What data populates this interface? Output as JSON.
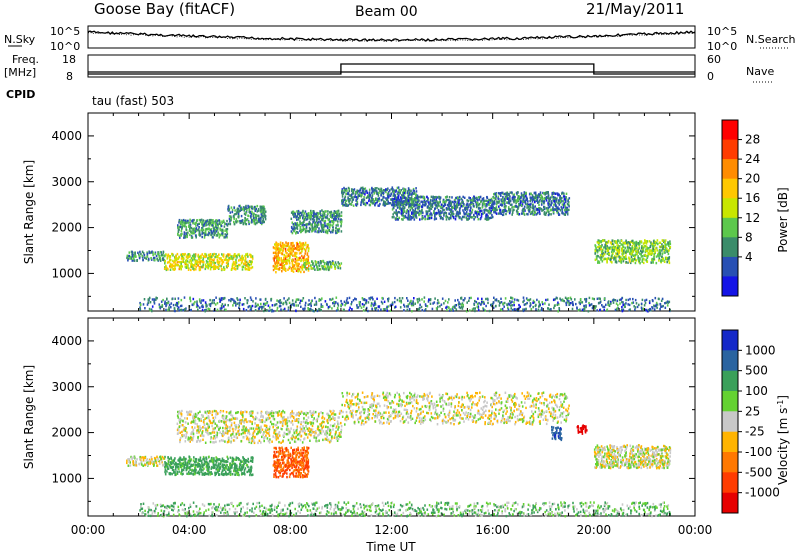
{
  "header": {
    "station": "Goose Bay (fitACF)",
    "beam": "Beam 00",
    "date": "21/May/2011"
  },
  "top_panel": {
    "left_label": "N.Sky",
    "left_ticks": [
      "10^5",
      "10^0"
    ],
    "right_label": "N.Search",
    "right_ticks": [
      "10^5",
      "10^0"
    ]
  },
  "freq_panel": {
    "left_label_1": "Freq.",
    "left_label_2": "[MHz]",
    "left_ticks": [
      "18",
      "8"
    ],
    "right_label": "Nave",
    "right_ticks": [
      "60",
      "0"
    ],
    "cpid_label": "CPID",
    "cpid_value": "tau (fast) 503"
  },
  "power_colorbar": {
    "label": "Power [dB]",
    "ticks": [
      "28",
      "24",
      "20",
      "16",
      "12",
      "8",
      "4"
    ],
    "colors": [
      "#ff0000",
      "#ff3c00",
      "#ff8c00",
      "#ffc800",
      "#c8e600",
      "#5cc84c",
      "#3a8c6a",
      "#2850b4",
      "#1414e6"
    ]
  },
  "velocity_colorbar": {
    "label": "Velocity [m s",
    "label_sup": "-1",
    "label_end": "]",
    "ticks": [
      "1000",
      "500",
      "100",
      "25",
      "-25",
      "-100",
      "-500",
      "-1000"
    ],
    "colors": [
      "#1428c8",
      "#2a64a0",
      "#3aa05a",
      "#64d232",
      "#c8c8c8",
      "#ffb400",
      "#ff7800",
      "#ff3c00",
      "#e60000"
    ]
  },
  "chart_data": [
    {
      "type": "heatmap",
      "panel": "power",
      "ylabel": "Slant Range [km]",
      "x_ticks": [
        "00:00",
        "04:00",
        "08:00",
        "12:00",
        "16:00",
        "20:00",
        "00:00"
      ],
      "y_ticks": [
        "1000",
        "2000",
        "3000",
        "4000"
      ],
      "xlim": [
        0,
        24
      ],
      "ylim": [
        180,
        4500
      ],
      "scatter_regions": [
        {
          "x": [
            1.5,
            3.0
          ],
          "y": [
            1300,
            1500
          ],
          "power": 8
        },
        {
          "x": [
            3.0,
            6.5
          ],
          "y": [
            1100,
            1450
          ],
          "power": 16
        },
        {
          "x": [
            3.5,
            5.5
          ],
          "y": [
            1800,
            2200
          ],
          "power": 8
        },
        {
          "x": [
            5.5,
            7.0
          ],
          "y": [
            2100,
            2500
          ],
          "power": 8
        },
        {
          "x": [
            7.3,
            8.7
          ],
          "y": [
            1050,
            1700
          ],
          "power": 20
        },
        {
          "x": [
            8.0,
            10.0
          ],
          "y": [
            1900,
            2400
          ],
          "power": 8
        },
        {
          "x": [
            8.5,
            10.0
          ],
          "y": [
            1100,
            1300
          ],
          "power": 10
        },
        {
          "x": [
            10.0,
            13.0
          ],
          "y": [
            2500,
            2900
          ],
          "power": 6
        },
        {
          "x": [
            12.0,
            16.0
          ],
          "y": [
            2200,
            2700
          ],
          "power": 6
        },
        {
          "x": [
            16.0,
            19.0
          ],
          "y": [
            2300,
            2800
          ],
          "power": 6
        },
        {
          "x": [
            20.0,
            23.0
          ],
          "y": [
            1250,
            1750
          ],
          "power": 12
        },
        {
          "x": [
            2.0,
            23.0
          ],
          "y": [
            200,
            500
          ],
          "power": 6
        }
      ]
    },
    {
      "type": "heatmap",
      "panel": "velocity",
      "ylabel": "Slant Range [km]",
      "xlabel": "Time UT",
      "x_ticks": [
        "00:00",
        "04:00",
        "08:00",
        "12:00",
        "16:00",
        "20:00",
        "00:00"
      ],
      "y_ticks": [
        "1000",
        "2000",
        "3000",
        "4000"
      ],
      "xlim": [
        0,
        24
      ],
      "ylim": [
        180,
        4500
      ],
      "scatter_regions": [
        {
          "x": [
            3.0,
            6.5
          ],
          "y": [
            1100,
            1500
          ],
          "velocity": 100
        },
        {
          "x": [
            7.3,
            8.7
          ],
          "y": [
            1050,
            1700
          ],
          "velocity": -300
        },
        {
          "x": [
            1.5,
            3.0
          ],
          "y": [
            1300,
            1500
          ],
          "velocity": 0
        },
        {
          "x": [
            3.5,
            10.0
          ],
          "y": [
            1800,
            2500
          ],
          "velocity": 0
        },
        {
          "x": [
            10.0,
            19.0
          ],
          "y": [
            2200,
            2900
          ],
          "velocity": 0
        },
        {
          "x": [
            18.3,
            18.7
          ],
          "y": [
            1850,
            2150
          ],
          "velocity": 700
        },
        {
          "x": [
            19.3,
            19.7
          ],
          "y": [
            2000,
            2200
          ],
          "velocity": -1000
        },
        {
          "x": [
            20.0,
            23.0
          ],
          "y": [
            1250,
            1750
          ],
          "velocity": 0
        },
        {
          "x": [
            2.0,
            23.0
          ],
          "y": [
            200,
            500
          ],
          "velocity": 50
        }
      ]
    }
  ]
}
